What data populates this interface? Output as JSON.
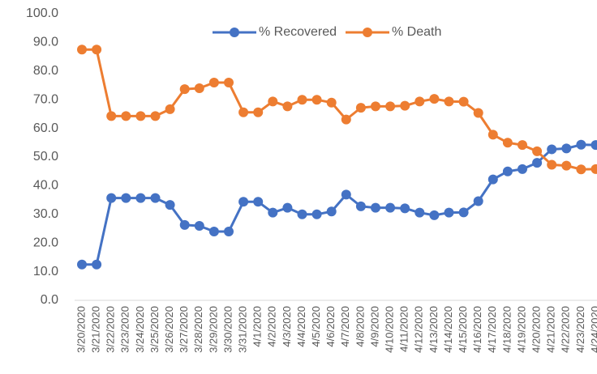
{
  "chart_data": {
    "type": "line",
    "categories": [
      "3/20/2020",
      "3/21/2020",
      "3/22/2020",
      "3/23/2020",
      "3/24/2020",
      "3/25/2020",
      "3/26/2020",
      "3/27/2020",
      "3/28/2020",
      "3/29/2020",
      "3/30/2020",
      "3/31/2020",
      "4/1/2020",
      "4/2/2020",
      "4/3/2020",
      "4/4/2020",
      "4/5/2020",
      "4/6/2020",
      "4/7/2020",
      "4/8/2020",
      "4/9/2020",
      "4/10/2020",
      "4/11/2020",
      "4/12/2020",
      "4/13/2020",
      "4/14/2020",
      "4/15/2020",
      "4/16/2020",
      "4/17/2020",
      "4/18/2020",
      "4/19/2020",
      "4/20/2020",
      "4/21/2020",
      "4/22/2020",
      "4/23/2020",
      "4/24/2020"
    ],
    "series": [
      {
        "name": "% Recovered",
        "color": "#4472c4",
        "values": [
          12.5,
          12.5,
          35.7,
          35.7,
          35.7,
          35.7,
          33.3,
          26.3,
          26,
          24,
          24,
          34.4,
          34.4,
          30.6,
          32.3,
          30,
          30,
          31,
          36.9,
          32.8,
          32.3,
          32.3,
          32.1,
          30.6,
          29.7,
          30.6,
          30.7,
          34.6,
          42.2,
          45,
          45.8,
          48,
          52.7,
          53,
          54.3,
          54.2
        ]
      },
      {
        "name": "% Death",
        "color": "#ed7d31",
        "values": [
          87.5,
          87.5,
          64.3,
          64.3,
          64.3,
          64.3,
          66.7,
          73.7,
          74,
          76,
          76,
          65.6,
          65.6,
          69.4,
          67.7,
          70,
          70,
          69,
          63.1,
          67.2,
          67.7,
          67.7,
          67.9,
          69.4,
          70.3,
          69.4,
          69.3,
          65.4,
          57.8,
          55,
          54.2,
          52,
          47.3,
          47,
          45.7,
          45.8
        ]
      }
    ],
    "ylim": [
      0,
      100
    ],
    "yticks": [
      {
        "value": 0,
        "label": "0.0"
      },
      {
        "value": 10,
        "label": "10.0"
      },
      {
        "value": 20,
        "label": "20.0"
      },
      {
        "value": 30,
        "label": "30.0"
      },
      {
        "value": 40,
        "label": "40.0"
      },
      {
        "value": 50,
        "label": "50.0"
      },
      {
        "value": 60,
        "label": "60.0"
      },
      {
        "value": 70,
        "label": "70.0"
      },
      {
        "value": 80,
        "label": "80.0"
      },
      {
        "value": 90,
        "label": "90.0"
      },
      {
        "value": 100,
        "label": "100.0"
      }
    ],
    "legend": "top",
    "grid": false
  }
}
